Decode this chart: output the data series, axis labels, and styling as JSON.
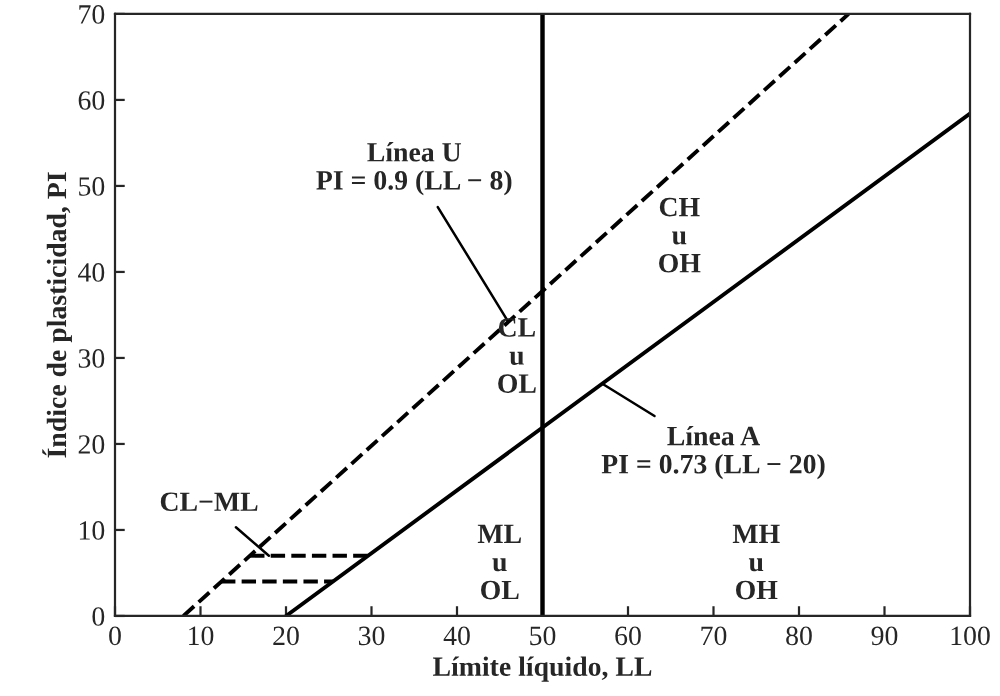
{
  "chart_data": {
    "type": "line",
    "xlabel": "Límite líquido, LL",
    "ylabel": "Índice de plasticidad, PI",
    "xlim": [
      0,
      100
    ],
    "ylim": [
      0,
      70
    ],
    "xticks": [
      0,
      10,
      20,
      30,
      40,
      50,
      60,
      70,
      80,
      90,
      100
    ],
    "yticks": [
      0,
      10,
      20,
      30,
      40,
      50,
      60,
      70
    ],
    "grid": false,
    "legend": false,
    "series": [
      {
        "color": "#000000",
        "line_style": "dashed",
        "x": [
          8,
          85.8
        ],
        "values": [
          0,
          70
        ]
      },
      {
        "color": "#000000",
        "line_style": "solid",
        "x": [
          20,
          100
        ],
        "values": [
          0,
          58.4
        ]
      },
      {
        "color": "#000000",
        "line_style": "dashed",
        "x": [
          15.8,
          29.6
        ],
        "values": [
          7,
          7
        ]
      },
      {
        "color": "#000000",
        "line_style": "dashed",
        "x": [
          12.4,
          25.5
        ],
        "values": [
          4,
          4
        ]
      }
    ],
    "ref_lines": [
      {
        "axis": "x",
        "value": 50,
        "color": "#000000",
        "line_style": "solid"
      }
    ],
    "annotations": [
      {
        "text": "Línea U\nPI = 0.9 (LL − 8)",
        "x": 46,
        "y": 34.2
      },
      {
        "text": "Línea A\nPI = 0.73 (LL − 20)",
        "x": 57,
        "y": 27
      },
      "CH\nu\nOH",
      "CL\nu\nOL",
      "ML\nu\nOL",
      "MH\nu\nOH",
      {
        "text": "CL−ML",
        "x": 18,
        "y": 7
      }
    ]
  }
}
